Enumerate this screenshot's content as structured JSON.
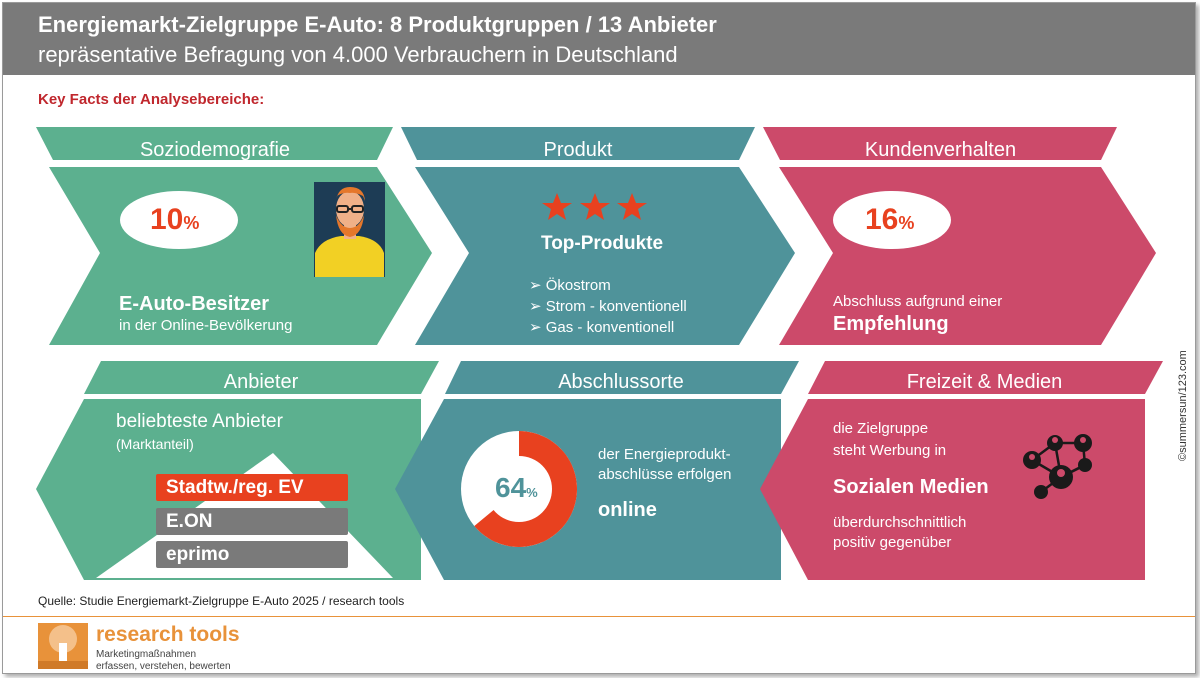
{
  "header": {
    "title": "Energiemarkt-Zielgruppe E-Auto: 8 Produktgruppen / 13 Anbieter",
    "subtitle": "repräsentative Befragung von 4.000 Verbrauchern in Deutschland"
  },
  "key_facts_label": "Key Facts der Analysebereiche:",
  "colors": {
    "green": "#5cb08f",
    "teal": "#4f939a",
    "pink": "#cc4a6a",
    "orange": "#e8411f",
    "gray": "#7a7a7a"
  },
  "panels": {
    "soziodemografie": {
      "title": "Soziodemografie",
      "value": "10",
      "unit": "%",
      "headline": "E-Auto-Besitzer",
      "text": "in der Online-Bevölkerung",
      "icon": "person-avatar-icon"
    },
    "produkt": {
      "title": "Produkt",
      "stars": 3,
      "headline": "Top-Produkte",
      "items": [
        "Ökostrom",
        "Strom - konventionell",
        "Gas - konventionell"
      ],
      "bullet": "➢"
    },
    "kundenverhalten": {
      "title": "Kundenverhalten",
      "value": "16",
      "unit": "%",
      "text": "Abschluss aufgrund einer",
      "headline": "Empfehlung"
    },
    "anbieter": {
      "title": "Anbieter",
      "headline": "beliebteste Anbieter",
      "subline": "(Marktanteil)",
      "ranking": [
        "Stadtw./reg. EV",
        "E.ON",
        "eprimo"
      ]
    },
    "abschlussorte": {
      "title": "Abschlussorte",
      "value": "64",
      "unit": "%",
      "fraction": 0.64,
      "text_line1": "der Energieprodukt-",
      "text_line2": "abschlüsse erfolgen",
      "headline": "online"
    },
    "freizeit": {
      "title": "Freizeit & Medien",
      "line1": "die Zielgruppe",
      "line2": "steht Werbung in",
      "headline": "Sozialen Medien",
      "line3": "überdurchschnittlich",
      "line4": "positiv gegenüber",
      "icon": "social-network-icon"
    }
  },
  "source": "Quelle: Studie Energiemarkt-Zielgruppe E-Auto 2025 / research tools",
  "brand": {
    "name": "research tools",
    "tagline1": "Marketingmaßnahmen",
    "tagline2": "erfassen, verstehen, bewerten",
    "logo_icon": "tree-logo-icon"
  },
  "copyright": "©summersun/123.com"
}
